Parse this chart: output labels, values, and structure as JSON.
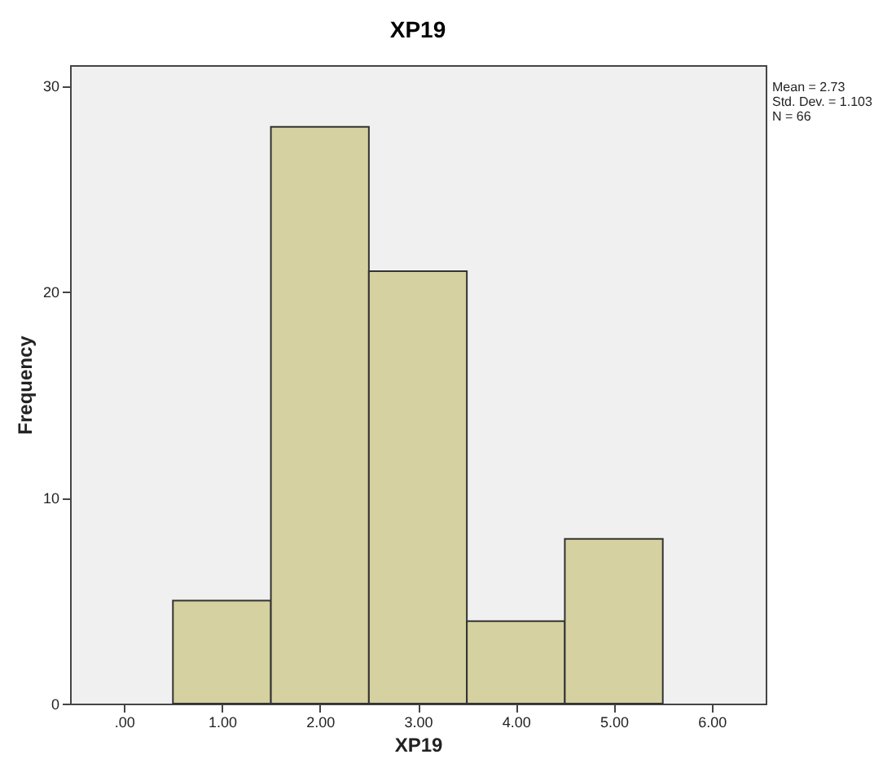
{
  "chart_data": {
    "type": "histogram",
    "title": "XP19",
    "xlabel": "XP19",
    "ylabel": "Frequency",
    "bins": [
      0.5,
      1.5,
      2.5,
      3.5,
      4.5,
      5.5
    ],
    "values": [
      5,
      28,
      21,
      4,
      8
    ],
    "color": "#d5d1a0",
    "xlim": [
      -0.55,
      6.55
    ],
    "xticks": [
      {
        "value": 0,
        "label": ".00"
      },
      {
        "value": 1,
        "label": "1.00"
      },
      {
        "value": 2,
        "label": "2.00"
      },
      {
        "value": 3,
        "label": "3.00"
      },
      {
        "value": 4,
        "label": "4.00"
      },
      {
        "value": 5,
        "label": "5.00"
      },
      {
        "value": 6,
        "label": "6.00"
      }
    ],
    "ylim": [
      0,
      31
    ],
    "yticks": [
      0,
      10,
      20,
      30
    ],
    "annotations": [
      "Mean = 2.73",
      "Std. Dev. = 1.103",
      "N = 66"
    ],
    "grid": false
  }
}
